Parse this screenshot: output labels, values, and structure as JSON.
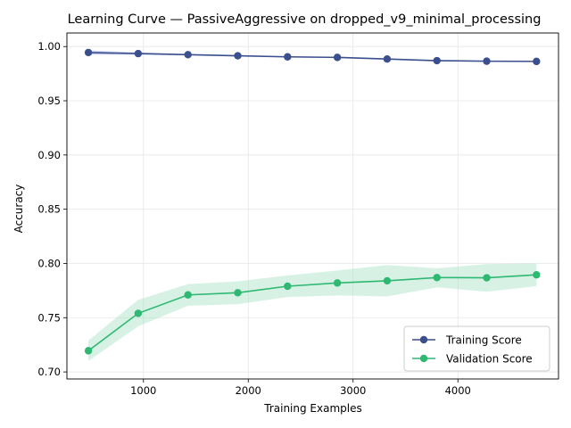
{
  "chart_data": {
    "type": "line",
    "title": "Learning Curve — PassiveAggressive on dropped_v9_minimal_processing",
    "xlabel": "Training Examples",
    "ylabel": "Accuracy",
    "xlim": [
      270,
      4960
    ],
    "ylim": [
      0.6935,
      1.0125
    ],
    "xticks": [
      1000,
      2000,
      3000,
      4000
    ],
    "xtick_labels": [
      "1000",
      "2000",
      "3000",
      "4000"
    ],
    "yticks": [
      0.7,
      0.75,
      0.8,
      0.85,
      0.9,
      0.95,
      1.0
    ],
    "ytick_labels": [
      "0.70",
      "0.75",
      "0.80",
      "0.85",
      "0.90",
      "0.95",
      "1.00"
    ],
    "grid": true,
    "legend_position": "lower-right",
    "x": [
      475,
      950,
      1425,
      1900,
      2375,
      2850,
      3325,
      3800,
      4275,
      4750
    ],
    "series": [
      {
        "name": "Training Score",
        "color": "#3b4f8f",
        "values": [
          0.9945,
          0.9935,
          0.9925,
          0.9915,
          0.9905,
          0.99,
          0.9885,
          0.987,
          0.9865,
          0.9863
        ],
        "band_lower": [
          0.9925,
          0.9925,
          0.992,
          0.991,
          0.99,
          0.9895,
          0.988,
          0.9865,
          0.986,
          0.9858
        ],
        "band_upper": [
          0.9965,
          0.9945,
          0.993,
          0.992,
          0.991,
          0.9905,
          0.989,
          0.9875,
          0.987,
          0.9868
        ],
        "band_color": "#8fa0d4"
      },
      {
        "name": "Validation Score",
        "color": "#2eb872",
        "values": [
          0.7195,
          0.754,
          0.771,
          0.773,
          0.779,
          0.782,
          0.784,
          0.787,
          0.7868,
          0.7895
        ],
        "band_lower": [
          0.71,
          0.742,
          0.761,
          0.7625,
          0.769,
          0.7705,
          0.7695,
          0.778,
          0.774,
          0.779
        ],
        "band_upper": [
          0.729,
          0.7665,
          0.781,
          0.7835,
          0.789,
          0.7935,
          0.7985,
          0.7955,
          0.7995,
          0.8
        ],
        "band_color": "#a6e3c5"
      }
    ]
  }
}
